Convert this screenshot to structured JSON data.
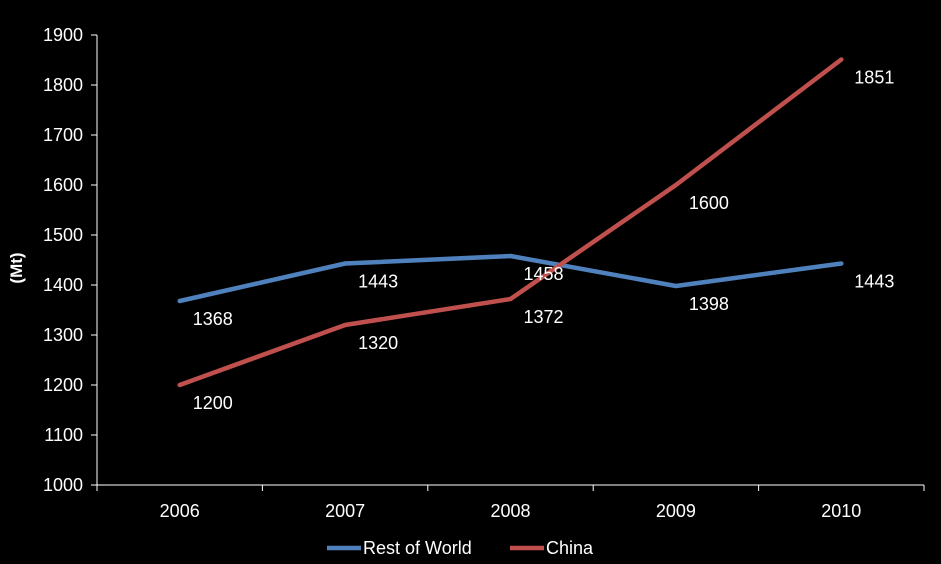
{
  "chart_data": {
    "type": "line",
    "title": "",
    "xlabel": "",
    "ylabel": "(Mt)",
    "ylim": [
      1000,
      1900
    ],
    "y_ticks": [
      "1000",
      "1100",
      "1200",
      "1300",
      "1400",
      "1500",
      "1600",
      "1700",
      "1800",
      "1900"
    ],
    "categories": [
      "2006",
      "2007",
      "2008",
      "2009",
      "2010"
    ],
    "grid": false,
    "legend_position": "bottom",
    "series": [
      {
        "name": "Rest of World",
        "color": "#4f81bd",
        "values": [
          1368,
          1443,
          1458,
          1398,
          1443
        ],
        "labels": [
          "1368",
          "1443",
          "1458",
          "1398",
          "1443"
        ]
      },
      {
        "name": "China",
        "color": "#c0504d",
        "values": [
          1200,
          1320,
          1372,
          1600,
          1851
        ],
        "labels": [
          "1200",
          "1320",
          "1372",
          "1600",
          "1851"
        ]
      }
    ]
  }
}
